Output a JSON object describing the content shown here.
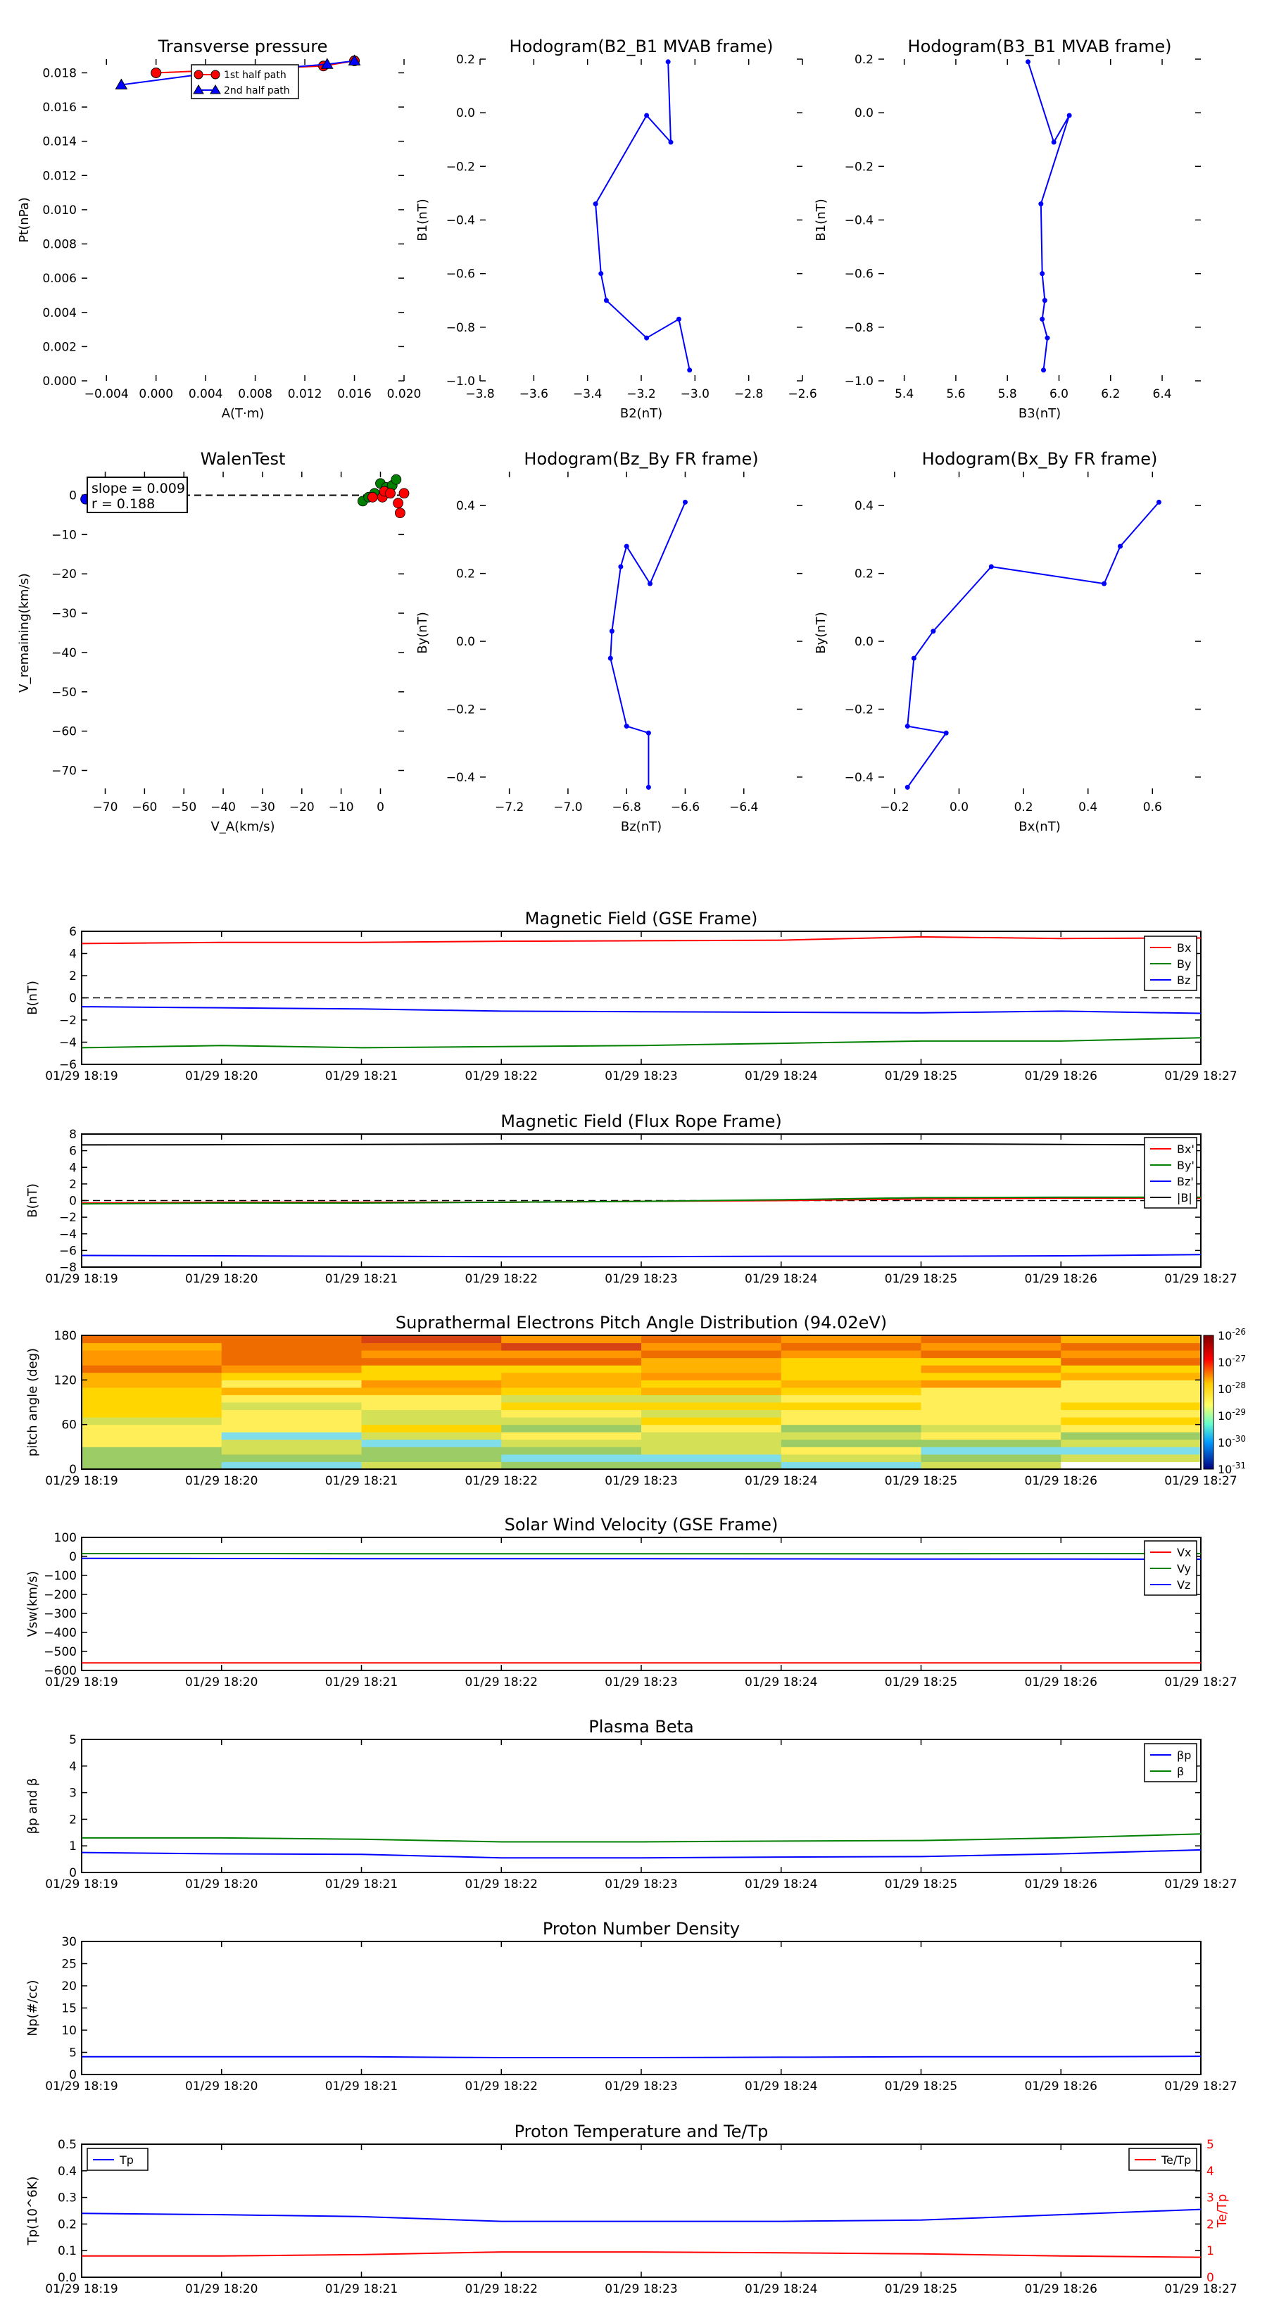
{
  "chart_data": [
    {
      "id": "pt",
      "type": "scatter",
      "title": "Transverse pressure",
      "xlabel": "A(T·m)",
      "ylabel": "Pt(nPa)",
      "xlim": [
        -0.006,
        0.02
      ],
      "ylim": [
        0.0,
        0.0188
      ],
      "xticks": [
        -0.004,
        0.0,
        0.004,
        0.008,
        0.012,
        0.016,
        0.02
      ],
      "xtick_labels": [
        "−0.004",
        "0.000",
        "0.004",
        "0.008",
        "0.012",
        "0.016",
        "0.020"
      ],
      "yticks": [
        0.0,
        0.002,
        0.004,
        0.006,
        0.008,
        0.01,
        0.012,
        0.014,
        0.016,
        0.018
      ],
      "ytick_labels": [
        "0.000",
        "0.002",
        "0.004",
        "0.006",
        "0.008",
        "0.010",
        "0.012",
        "0.014",
        "0.016",
        "0.018"
      ],
      "legend": [
        "1st half path",
        "2nd half path"
      ],
      "series": [
        {
          "name": "1st half path",
          "color": "#ff0000",
          "marker": "circle",
          "x": [
            0.0,
            0.0135,
            0.016
          ],
          "y": [
            0.018,
            0.0184,
            0.0187
          ]
        },
        {
          "name": "2nd half path",
          "color": "#0000ff",
          "marker": "triangle",
          "x": [
            -0.0028,
            0.0035,
            0.0138,
            0.016
          ],
          "y": [
            0.0173,
            0.0179,
            0.0185,
            0.0187
          ]
        }
      ]
    },
    {
      "id": "h1",
      "type": "line",
      "title": "Hodogram(B2_B1 MVAB frame)",
      "xlabel": "B2(nT)",
      "ylabel": "B1(nT)",
      "xlim": [
        -3.8,
        -2.6
      ],
      "ylim": [
        -1.0,
        0.2
      ],
      "xticks": [
        -3.8,
        -3.6,
        -3.4,
        -3.2,
        -3.0,
        -2.8,
        -2.6
      ],
      "xtick_labels": [
        "−3.8",
        "−3.6",
        "−3.4",
        "−3.2",
        "−3.0",
        "−2.8",
        "−2.6"
      ],
      "yticks": [
        -1.0,
        -0.8,
        -0.6,
        -0.4,
        -0.2,
        0.0,
        0.2
      ],
      "ytick_labels": [
        "−1.0",
        "−0.8",
        "−0.6",
        "−0.4",
        "−0.2",
        "0.0",
        "0.2"
      ],
      "series": [
        {
          "color": "#0000ff",
          "x": [
            -3.1,
            -3.09,
            -3.18,
            -3.37,
            -3.35,
            -3.33,
            -3.18,
            -3.06,
            -3.02
          ],
          "y": [
            0.19,
            -0.11,
            -0.01,
            -0.34,
            -0.6,
            -0.7,
            -0.84,
            -0.77,
            -0.96
          ]
        }
      ]
    },
    {
      "id": "h2",
      "type": "line",
      "title": "Hodogram(B3_B1 MVAB frame)",
      "xlabel": "B3(nT)",
      "ylabel": "B1(nT)",
      "xlim": [
        5.3,
        6.55
      ],
      "ylim": [
        -1.0,
        0.2
      ],
      "xticks": [
        5.4,
        5.6,
        5.8,
        6.0,
        6.2,
        6.4
      ],
      "xtick_labels": [
        "5.4",
        "5.6",
        "5.8",
        "6.0",
        "6.2",
        "6.4"
      ],
      "yticks": [
        -1.0,
        -0.8,
        -0.6,
        -0.4,
        -0.2,
        0.0,
        0.2
      ],
      "ytick_labels": [
        "−1.0",
        "−0.8",
        "−0.6",
        "−0.4",
        "−0.2",
        "0.0",
        "0.2"
      ],
      "series": [
        {
          "color": "#0000ff",
          "x": [
            5.88,
            5.98,
            6.04,
            5.93,
            5.935,
            5.945,
            5.935,
            5.955,
            5.94
          ],
          "y": [
            0.19,
            -0.11,
            -0.01,
            -0.34,
            -0.6,
            -0.7,
            -0.77,
            -0.84,
            -0.96
          ]
        }
      ]
    },
    {
      "id": "walen",
      "type": "scatter",
      "title": "WalenTest",
      "xlabel": "V_A(km/s)",
      "ylabel": "V_remaining(km/s)",
      "xlim": [
        -76,
        6
      ],
      "ylim": [
        -76,
        6
      ],
      "xticks": [
        -70,
        -60,
        -50,
        -40,
        -30,
        -20,
        -10,
        0
      ],
      "xtick_labels": [
        "−70",
        "−60",
        "−50",
        "−40",
        "−30",
        "−20",
        "−10",
        "0"
      ],
      "yticks": [
        -70,
        -60,
        -50,
        -40,
        -30,
        -20,
        -10,
        0
      ],
      "ytick_labels": [
        "−70",
        "−60",
        "−50",
        "−40",
        "−30",
        "−20",
        "−10",
        "0"
      ],
      "annotation": [
        "slope = 0.009",
        "r = 0.188"
      ],
      "series": [
        {
          "color": "#008000",
          "x": [
            -4.5,
            -3,
            0,
            1.5,
            3,
            4,
            -1.5,
            2.5
          ],
          "y": [
            -1.5,
            -0.5,
            3,
            2,
            2.5,
            4,
            0.5,
            0.5
          ]
        },
        {
          "color": "#ff0000",
          "x": [
            -2,
            0.5,
            1,
            4.5,
            5,
            2.5,
            6
          ],
          "y": [
            -0.5,
            -0.5,
            1,
            -2,
            -4.5,
            0.5,
            0.5
          ]
        },
        {
          "color": "#0000ff",
          "x": [
            -75
          ],
          "y": [
            -1
          ]
        }
      ]
    },
    {
      "id": "h3",
      "type": "line",
      "title": "Hodogram(Bz_By FR frame)",
      "xlabel": "Bz(nT)",
      "ylabel": "By(nT)",
      "xlim": [
        -7.3,
        -6.2
      ],
      "ylim": [
        -0.45,
        0.5
      ],
      "xticks": [
        -7.2,
        -7.0,
        -6.8,
        -6.6,
        -6.4
      ],
      "xtick_labels": [
        "−7.2",
        "−7.0",
        "−6.8",
        "−6.6",
        "−6.4"
      ],
      "yticks": [
        -0.4,
        -0.2,
        0.0,
        0.2,
        0.4
      ],
      "ytick_labels": [
        "−0.4",
        "−0.2",
        "0.0",
        "0.2",
        "0.4"
      ],
      "series": [
        {
          "color": "#0000ff",
          "x": [
            -6.6,
            -6.72,
            -6.8,
            -6.82,
            -6.85,
            -6.855,
            -6.8,
            -6.725,
            -6.725
          ],
          "y": [
            0.41,
            0.17,
            0.28,
            0.22,
            0.03,
            -0.05,
            -0.25,
            -0.27,
            -0.43
          ]
        }
      ]
    },
    {
      "id": "h4",
      "type": "line",
      "title": "Hodogram(Bx_By FR frame)",
      "xlabel": "Bx(nT)",
      "ylabel": "By(nT)",
      "xlim": [
        -0.25,
        0.75
      ],
      "ylim": [
        -0.45,
        0.5
      ],
      "xticks": [
        -0.2,
        0.0,
        0.2,
        0.4,
        0.6
      ],
      "xtick_labels": [
        "−0.2",
        "0.0",
        "0.2",
        "0.4",
        "0.6"
      ],
      "yticks": [
        -0.4,
        -0.2,
        0.0,
        0.2,
        0.4
      ],
      "ytick_labels": [
        "−0.4",
        "−0.2",
        "0.0",
        "0.2",
        "0.4"
      ],
      "series": [
        {
          "color": "#0000ff",
          "x": [
            0.62,
            0.5,
            0.45,
            0.1,
            -0.08,
            -0.14,
            -0.16,
            -0.04,
            -0.16
          ],
          "y": [
            0.41,
            0.28,
            0.17,
            0.22,
            0.03,
            -0.05,
            -0.25,
            -0.27,
            -0.43
          ]
        }
      ]
    },
    {
      "id": "mag_gse",
      "type": "line",
      "title": "Magnetic Field (GSE Frame)",
      "ylabel": "B(nT)",
      "ylim": [
        -6,
        6
      ],
      "yticks": [
        -6,
        -4,
        -2,
        0,
        2,
        4,
        6
      ],
      "ytick_labels": [
        "−6",
        "−4",
        "−2",
        "0",
        "2",
        "4",
        "6"
      ],
      "legend_position": "top-right",
      "zero_line": true,
      "series": [
        {
          "name": "Bx",
          "color": "#ff0000",
          "y": [
            4.9,
            5.0,
            5.0,
            5.1,
            5.15,
            5.2,
            5.5,
            5.35,
            5.4
          ]
        },
        {
          "name": "By",
          "color": "#008000",
          "y": [
            -4.5,
            -4.3,
            -4.5,
            -4.4,
            -4.3,
            -4.1,
            -3.9,
            -3.9,
            -3.6
          ]
        },
        {
          "name": "Bz",
          "color": "#0000ff",
          "y": [
            -0.8,
            -0.9,
            -1.0,
            -1.2,
            -1.25,
            -1.3,
            -1.35,
            -1.2,
            -1.4
          ]
        }
      ]
    },
    {
      "id": "mag_fr",
      "type": "line",
      "title": "Magnetic Field (Flux Rope Frame)",
      "ylabel": "B(nT)",
      "ylim": [
        -8,
        8
      ],
      "yticks": [
        -8,
        -6,
        -4,
        -2,
        0,
        2,
        4,
        6,
        8
      ],
      "ytick_labels": [
        "−8",
        "−6",
        "−4",
        "−2",
        "0",
        "2",
        "4",
        "6",
        "8"
      ],
      "legend_position": "top-right",
      "zero_line": true,
      "series": [
        {
          "name": "Bx'",
          "color": "#ff0000",
          "y": [
            -0.3,
            -0.2,
            -0.2,
            -0.2,
            -0.1,
            0.0,
            0.2,
            0.3,
            0.3
          ]
        },
        {
          "name": "By'",
          "color": "#008000",
          "y": [
            -0.4,
            -0.3,
            -0.3,
            -0.2,
            -0.1,
            0.1,
            0.35,
            0.4,
            0.4
          ]
        },
        {
          "name": "Bz'",
          "color": "#0000ff",
          "y": [
            -6.6,
            -6.65,
            -6.7,
            -6.75,
            -6.75,
            -6.7,
            -6.7,
            -6.65,
            -6.5
          ]
        },
        {
          "name": "|B|",
          "color": "#000000",
          "y": [
            6.7,
            6.72,
            6.75,
            6.8,
            6.8,
            6.78,
            6.82,
            6.75,
            6.7
          ]
        }
      ]
    },
    {
      "id": "pad",
      "type": "heatmap",
      "title": "Suprathermal Electrons Pitch Angle Distribution (94.02eV)",
      "ylabel": "pitch angle (deg)",
      "ylim": [
        0,
        180
      ],
      "yticks": [
        0,
        60,
        120,
        180
      ],
      "ytick_labels": [
        "0",
        "60",
        "120",
        "180"
      ],
      "colorbar_ticks": [
        "10^-26",
        "10^-27",
        "10^-28",
        "10^-29",
        "10^-30",
        "10^-31"
      ],
      "colorbar_exponents": [
        "-26",
        "-27",
        "-28",
        "-29",
        "-30",
        "-31"
      ],
      "colorbar_base": "10",
      "rows": 18,
      "cols": 8
    },
    {
      "id": "vsw",
      "type": "line",
      "title": "Solar Wind Velocity (GSE Frame)",
      "ylabel": "Vsw(km/s)",
      "ylim": [
        -600,
        100
      ],
      "yticks": [
        -600,
        -500,
        -400,
        -300,
        -200,
        -100,
        0,
        100
      ],
      "ytick_labels": [
        "−600",
        "−500",
        "−400",
        "−300",
        "−200",
        "−100",
        "0",
        "100"
      ],
      "legend_position": "top-right",
      "series": [
        {
          "name": "Vx",
          "color": "#ff0000",
          "y": [
            -560,
            -560,
            -560,
            -560,
            -560,
            -560,
            -560,
            -560,
            -560
          ]
        },
        {
          "name": "Vy",
          "color": "#008000",
          "y": [
            15,
            15,
            14,
            14,
            14,
            14,
            14,
            15,
            15
          ]
        },
        {
          "name": "Vz",
          "color": "#0000ff",
          "y": [
            -10,
            -11,
            -12,
            -12,
            -12,
            -13,
            -14,
            -14,
            -15
          ]
        }
      ]
    },
    {
      "id": "beta",
      "type": "line",
      "title": "Plasma Beta",
      "ylabel": "βp and β",
      "ylim": [
        0,
        5
      ],
      "yticks": [
        0,
        1,
        2,
        3,
        4,
        5
      ],
      "ytick_labels": [
        "0",
        "1",
        "2",
        "3",
        "4",
        "5"
      ],
      "legend_position": "top-right",
      "series": [
        {
          "name": "βp",
          "color": "#0000ff",
          "y": [
            0.75,
            0.7,
            0.68,
            0.55,
            0.55,
            0.58,
            0.6,
            0.7,
            0.85
          ]
        },
        {
          "name": "β",
          "color": "#008000",
          "y": [
            1.3,
            1.3,
            1.25,
            1.15,
            1.15,
            1.18,
            1.2,
            1.3,
            1.45
          ]
        }
      ]
    },
    {
      "id": "np",
      "type": "line",
      "title": "Proton Number Density",
      "ylabel": "Np(#/cc)",
      "ylim": [
        0,
        30
      ],
      "yticks": [
        0,
        5,
        10,
        15,
        20,
        25,
        30
      ],
      "ytick_labels": [
        "0",
        "5",
        "10",
        "15",
        "20",
        "25",
        "30"
      ],
      "series": [
        {
          "name": "Np",
          "color": "#0000ff",
          "y": [
            4.0,
            4.0,
            4.0,
            3.8,
            3.8,
            3.9,
            4.0,
            4.0,
            4.1
          ]
        }
      ]
    },
    {
      "id": "tp",
      "type": "line",
      "title": "Proton Temperature and Te/Tp",
      "ylabel": "Tp(10^6K)",
      "ylabel2": "Te/Tp",
      "ylim": [
        0,
        0.5
      ],
      "yticks": [
        0,
        0.1,
        0.2,
        0.3,
        0.4,
        0.5
      ],
      "ytick_labels": [
        "0.0",
        "0.1",
        "0.2",
        "0.3",
        "0.4",
        "0.5"
      ],
      "ylim2": [
        0,
        5
      ],
      "yticks2": [
        0,
        1,
        2,
        3,
        4,
        5
      ],
      "ytick_labels2": [
        "0",
        "1",
        "2",
        "3",
        "4",
        "5"
      ],
      "legend_position": "top-left",
      "legend_position2": "top-right",
      "series": [
        {
          "name": "Tp",
          "color": "#0000ff",
          "axis": "left",
          "y": [
            0.24,
            0.235,
            0.228,
            0.21,
            0.21,
            0.21,
            0.215,
            0.235,
            0.255
          ]
        },
        {
          "name": "Te/Tp",
          "color": "#ff0000",
          "axis": "right",
          "y": [
            0.8,
            0.8,
            0.85,
            0.95,
            0.95,
            0.92,
            0.88,
            0.8,
            0.75
          ]
        }
      ]
    }
  ],
  "time_axis": {
    "labels": [
      "01/29 18:19",
      "01/29 18:20",
      "01/29 18:21",
      "01/29 18:22",
      "01/29 18:23",
      "01/29 18:24",
      "01/29 18:25",
      "01/29 18:26",
      "01/29 18:27"
    ]
  }
}
